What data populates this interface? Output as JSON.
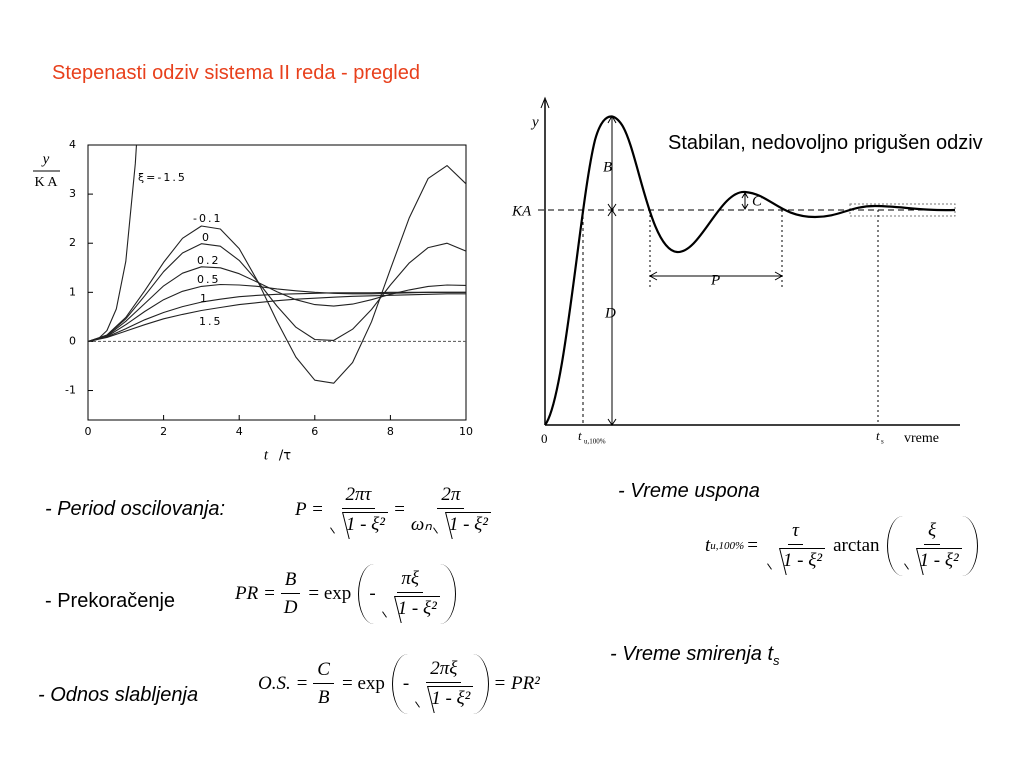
{
  "title": "Stepenasti odziv sistema II reda - pregled",
  "chart_data": {
    "type": "line",
    "y_label_top": "y",
    "y_label_bottom": "K A",
    "x_label": "t",
    "x_label_unit": "/τ",
    "x": [
      0,
      0.5,
      1,
      1.5,
      2,
      2.5,
      3,
      3.5,
      4,
      4.5,
      5,
      5.5,
      6,
      6.5,
      7,
      7.5,
      8,
      8.5,
      9,
      9.5,
      10
    ],
    "series": [
      {
        "name": "ξ=-1.5",
        "color": "#222222",
        "x": [
          0,
          0.25,
          0.5,
          0.75,
          1,
          1.25,
          1.3
        ],
        "values": [
          0,
          0.04,
          0.22,
          0.66,
          1.63,
          3.62,
          4.21
        ]
      },
      {
        "name": "-0.1",
        "color": "#222222",
        "values": [
          0,
          0.13,
          0.49,
          1.03,
          1.61,
          2.1,
          2.35,
          2.29,
          1.89,
          1.21,
          0.41,
          -0.32,
          -0.79,
          -0.85,
          -0.43,
          0.4,
          1.47,
          2.52,
          3.32,
          3.58,
          3.21
        ]
      },
      {
        "name": "0",
        "color": "#222222",
        "values": [
          0,
          0.12,
          0.46,
          0.93,
          1.42,
          1.8,
          1.99,
          1.94,
          1.65,
          1.21,
          0.72,
          0.29,
          0.04,
          0.02,
          0.25,
          0.65,
          1.15,
          1.6,
          1.91,
          2.0,
          1.84
        ]
      },
      {
        "name": "0.2",
        "color": "#222222",
        "values": [
          0,
          0.11,
          0.41,
          0.77,
          1.13,
          1.39,
          1.52,
          1.5,
          1.38,
          1.2,
          1.01,
          0.85,
          0.75,
          0.72,
          0.76,
          0.85,
          0.96,
          1.05,
          1.12,
          1.15,
          1.14
        ]
      },
      {
        "name": "0.5",
        "color": "#222222",
        "values": [
          0,
          0.1,
          0.34,
          0.61,
          0.85,
          1.02,
          1.12,
          1.16,
          1.15,
          1.12,
          1.07,
          1.03,
          1.0,
          0.98,
          0.97,
          0.97,
          0.98,
          0.99,
          1.0,
          1.0,
          1.0
        ]
      },
      {
        "name": "1",
        "color": "#222222",
        "values": [
          0,
          0.09,
          0.26,
          0.44,
          0.59,
          0.71,
          0.8,
          0.86,
          0.91,
          0.94,
          0.96,
          0.97,
          0.98,
          0.99,
          0.99,
          0.99,
          1.0,
          1.0,
          1.0,
          1.0,
          1.0
        ]
      },
      {
        "name": "1.5",
        "color": "#222222",
        "values": [
          0,
          0.08,
          0.21,
          0.34,
          0.46,
          0.55,
          0.63,
          0.69,
          0.75,
          0.79,
          0.83,
          0.86,
          0.88,
          0.9,
          0.92,
          0.93,
          0.94,
          0.95,
          0.96,
          0.97,
          0.97
        ]
      }
    ],
    "xlim": [
      0,
      10
    ],
    "ylim": [
      -1.6,
      4
    ],
    "xticks": [
      0,
      2,
      4,
      6,
      8,
      10
    ],
    "yticks": [
      -1,
      0,
      1,
      2,
      3,
      4
    ],
    "hline": 0
  },
  "diagram": {
    "caption": "Stabilan, nedovoljno prigušen odziv",
    "y_label": "y",
    "ka_label": "KA",
    "b_label": "B",
    "c_label": "C",
    "d_label": "D",
    "p_label": "P",
    "origin_label": "0",
    "rise_time_label": "t",
    "rise_time_sub": "u,100%",
    "settle_label": "t",
    "settle_sub": "s",
    "x_label": "vreme"
  },
  "formulas": {
    "period": {
      "label": "- Period oscilovanja:",
      "lhs": "P =",
      "num1": "2πτ",
      "rad1": "1 - ξ²",
      "eq": "=",
      "num2": "2π",
      "den2": "ωₙ",
      "rad2": "1 - ξ²"
    },
    "overshoot": {
      "label": "- Prekoračenje",
      "lhs": "PR =",
      "num": "B",
      "den": "D",
      "eq": "= exp",
      "neg": "-",
      "num2": "πξ",
      "rad": "1 - ξ²"
    },
    "decay": {
      "label": "- Odnos slabljenja",
      "lhs": "O.S. =",
      "num": "C",
      "den": "B",
      "eq": "= exp",
      "neg": "-",
      "num2": "2πξ",
      "rad": "1 - ξ²",
      "rhs": "= PR²"
    },
    "rise": {
      "label": "- Vreme uspona",
      "lhs": "t",
      "lhs_sub": "u,100%",
      "eq": "=",
      "num": "τ",
      "rad": "1 - ξ²",
      "fn": "arctan",
      "num2": "ξ",
      "rad2": "1 - ξ²"
    },
    "settling": {
      "label": "- Vreme smirenja t",
      "sub": "s"
    }
  }
}
